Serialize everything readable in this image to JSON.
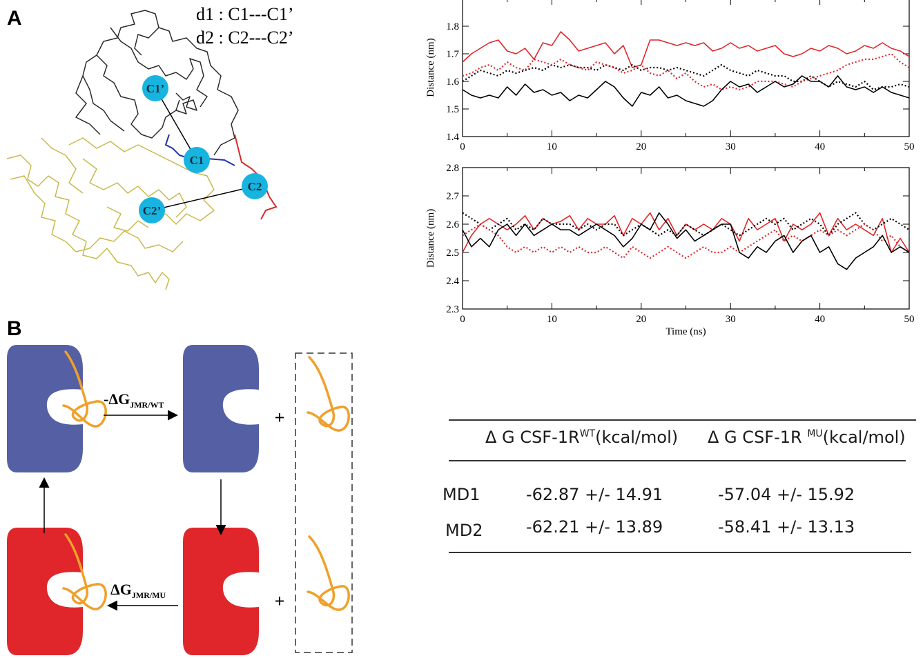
{
  "panel_a": {
    "letter": "A",
    "legend": [
      "d1 : C1---C1’",
      "d2 : C2---C2’"
    ],
    "markers": [
      "C1’",
      "C1",
      "C2",
      "C2’"
    ],
    "colors": {
      "marker": "#18b4e0",
      "receptor": "#2b2b2b",
      "jmr": "#c9b84a",
      "linker_red": "#d42a2a",
      "linker_blue": "#2233aa"
    }
  },
  "panel_b": {
    "letter": "B",
    "dg_wt": {
      "prefix": "-ΔG",
      "sub": "JMR/WT"
    },
    "dg_mu": {
      "prefix": "ΔG",
      "sub": "JMR/MU"
    },
    "plus": "+",
    "colors": {
      "wt": "#5560a4",
      "mu": "#e0262a",
      "peptide": "#f0a02a"
    }
  },
  "chart_data": [
    {
      "type": "line",
      "title": "",
      "xlabel": "",
      "ylabel": "Distance (nm)",
      "xlim": [
        0,
        50
      ],
      "ylim": [
        1.4,
        1.9
      ],
      "x_ticks": [
        "0",
        "10",
        "20",
        "30",
        "40",
        "50"
      ],
      "y_ticks": [
        "1.4",
        "1.5",
        "1.6",
        "1.7",
        "1.8"
      ],
      "x": [
        0,
        1,
        2,
        3,
        4,
        5,
        6,
        7,
        8,
        9,
        10,
        11,
        12,
        13,
        14,
        15,
        16,
        17,
        18,
        19,
        20,
        21,
        22,
        23,
        24,
        25,
        26,
        27,
        28,
        29,
        30,
        31,
        32,
        33,
        34,
        35,
        36,
        37,
        38,
        39,
        40,
        41,
        42,
        43,
        44,
        45,
        46,
        47,
        48,
        49,
        50
      ],
      "series": [
        {
          "color": "#e0262a",
          "style": "solid",
          "values": [
            1.67,
            1.7,
            1.72,
            1.74,
            1.75,
            1.71,
            1.7,
            1.72,
            1.68,
            1.74,
            1.73,
            1.78,
            1.75,
            1.71,
            1.72,
            1.73,
            1.74,
            1.7,
            1.73,
            1.65,
            1.66,
            1.75,
            1.75,
            1.74,
            1.73,
            1.74,
            1.73,
            1.74,
            1.71,
            1.72,
            1.74,
            1.72,
            1.73,
            1.71,
            1.72,
            1.73,
            1.7,
            1.69,
            1.7,
            1.72,
            1.71,
            1.73,
            1.72,
            1.7,
            1.71,
            1.73,
            1.72,
            1.74,
            1.72,
            1.71,
            1.69
          ]
        },
        {
          "color": "#000000",
          "style": "dotted",
          "values": [
            1.6,
            1.62,
            1.64,
            1.63,
            1.62,
            1.64,
            1.63,
            1.64,
            1.65,
            1.64,
            1.66,
            1.65,
            1.66,
            1.65,
            1.65,
            1.64,
            1.66,
            1.65,
            1.64,
            1.66,
            1.64,
            1.65,
            1.65,
            1.64,
            1.65,
            1.64,
            1.63,
            1.62,
            1.64,
            1.66,
            1.64,
            1.63,
            1.62,
            1.64,
            1.63,
            1.62,
            1.62,
            1.6,
            1.6,
            1.62,
            1.6,
            1.58,
            1.6,
            1.59,
            1.58,
            1.6,
            1.57,
            1.58,
            1.58,
            1.59,
            1.58
          ]
        },
        {
          "color": "#e0262a",
          "style": "dotted",
          "values": [
            1.62,
            1.63,
            1.65,
            1.66,
            1.64,
            1.67,
            1.65,
            1.64,
            1.68,
            1.67,
            1.66,
            1.68,
            1.66,
            1.65,
            1.64,
            1.67,
            1.66,
            1.65,
            1.63,
            1.64,
            1.66,
            1.63,
            1.62,
            1.64,
            1.61,
            1.63,
            1.6,
            1.58,
            1.59,
            1.57,
            1.58,
            1.57,
            1.58,
            1.6,
            1.6,
            1.6,
            1.59,
            1.58,
            1.6,
            1.61,
            1.62,
            1.63,
            1.64,
            1.66,
            1.67,
            1.68,
            1.68,
            1.69,
            1.7,
            1.67,
            1.65
          ]
        },
        {
          "color": "#000000",
          "style": "solid",
          "values": [
            1.57,
            1.55,
            1.54,
            1.55,
            1.54,
            1.58,
            1.55,
            1.59,
            1.56,
            1.57,
            1.55,
            1.56,
            1.53,
            1.55,
            1.54,
            1.57,
            1.6,
            1.58,
            1.54,
            1.51,
            1.56,
            1.55,
            1.58,
            1.54,
            1.55,
            1.53,
            1.52,
            1.51,
            1.53,
            1.57,
            1.6,
            1.58,
            1.59,
            1.56,
            1.58,
            1.6,
            1.58,
            1.59,
            1.62,
            1.6,
            1.6,
            1.58,
            1.62,
            1.58,
            1.57,
            1.58,
            1.56,
            1.58,
            1.56,
            1.55,
            1.54
          ]
        }
      ]
    },
    {
      "type": "line",
      "title": "",
      "xlabel": "Time (ns)",
      "ylabel": "Distance (nm)",
      "xlim": [
        0,
        50
      ],
      "ylim": [
        2.3,
        2.8
      ],
      "x_ticks": [
        "0",
        "10",
        "20",
        "30",
        "40",
        "50"
      ],
      "y_ticks": [
        "2.3",
        "2.4",
        "2.5",
        "2.6",
        "2.7",
        "2.8"
      ],
      "x": [
        0,
        1,
        2,
        3,
        4,
        5,
        6,
        7,
        8,
        9,
        10,
        11,
        12,
        13,
        14,
        15,
        16,
        17,
        18,
        19,
        20,
        21,
        22,
        23,
        24,
        25,
        26,
        27,
        28,
        29,
        30,
        31,
        32,
        33,
        34,
        35,
        36,
        37,
        38,
        39,
        40,
        41,
        42,
        43,
        44,
        45,
        46,
        47,
        48,
        49,
        50
      ],
      "series": [
        {
          "color": "#e0262a",
          "style": "solid",
          "values": [
            2.5,
            2.56,
            2.6,
            2.62,
            2.6,
            2.58,
            2.6,
            2.63,
            2.58,
            2.62,
            2.6,
            2.61,
            2.63,
            2.58,
            2.62,
            2.6,
            2.6,
            2.63,
            2.56,
            2.62,
            2.6,
            2.64,
            2.58,
            2.62,
            2.56,
            2.6,
            2.58,
            2.6,
            2.58,
            2.62,
            2.6,
            2.54,
            2.62,
            2.58,
            2.6,
            2.62,
            2.54,
            2.6,
            2.58,
            2.6,
            2.64,
            2.56,
            2.62,
            2.58,
            2.6,
            2.58,
            2.56,
            2.62,
            2.5,
            2.55,
            2.5
          ]
        },
        {
          "color": "#000000",
          "style": "dotted",
          "values": [
            2.64,
            2.62,
            2.6,
            2.58,
            2.6,
            2.62,
            2.58,
            2.6,
            2.58,
            2.62,
            2.6,
            2.6,
            2.6,
            2.58,
            2.6,
            2.58,
            2.6,
            2.6,
            2.56,
            2.58,
            2.6,
            2.58,
            2.56,
            2.58,
            2.56,
            2.6,
            2.58,
            2.56,
            2.58,
            2.6,
            2.58,
            2.56,
            2.58,
            2.6,
            2.62,
            2.6,
            2.62,
            2.58,
            2.6,
            2.62,
            2.6,
            2.56,
            2.6,
            2.62,
            2.64,
            2.6,
            2.58,
            2.6,
            2.62,
            2.6,
            2.58
          ]
        },
        {
          "color": "#e0262a",
          "style": "dotted",
          "values": [
            2.56,
            2.58,
            2.6,
            2.58,
            2.56,
            2.52,
            2.5,
            2.52,
            2.5,
            2.52,
            2.5,
            2.52,
            2.5,
            2.52,
            2.5,
            2.5,
            2.52,
            2.5,
            2.48,
            2.52,
            2.5,
            2.48,
            2.5,
            2.52,
            2.5,
            2.48,
            2.5,
            2.52,
            2.5,
            2.5,
            2.52,
            2.5,
            2.52,
            2.54,
            2.56,
            2.58,
            2.54,
            2.56,
            2.54,
            2.56,
            2.58,
            2.56,
            2.58,
            2.56,
            2.58,
            2.6,
            2.58,
            2.54,
            2.56,
            2.52,
            2.5
          ]
        },
        {
          "color": "#000000",
          "style": "solid",
          "values": [
            2.58,
            2.52,
            2.55,
            2.52,
            2.58,
            2.6,
            2.56,
            2.6,
            2.56,
            2.58,
            2.6,
            2.58,
            2.58,
            2.56,
            2.58,
            2.6,
            2.58,
            2.56,
            2.52,
            2.55,
            2.6,
            2.58,
            2.64,
            2.6,
            2.55,
            2.58,
            2.54,
            2.56,
            2.58,
            2.6,
            2.6,
            2.5,
            2.48,
            2.52,
            2.5,
            2.54,
            2.56,
            2.5,
            2.54,
            2.56,
            2.5,
            2.52,
            2.46,
            2.44,
            2.48,
            2.5,
            2.52,
            2.56,
            2.5,
            2.52,
            2.5
          ]
        }
      ]
    }
  ],
  "table": {
    "headers": [
      {
        "main": "Δ G CSF-1R",
        "sup": "WT",
        "unit": "(kcal/mol)"
      },
      {
        "main": "Δ G CSF-1R ",
        "sup": "MU",
        "unit": "(kcal/mol)"
      }
    ],
    "rows": [
      {
        "label": "MD1",
        "wt": "-62.87 +/- 14.91",
        "mu": "-57.04 +/- 15.92"
      },
      {
        "label": "MD2",
        "wt": "-62.21 +/- 13.89",
        "mu": "-58.41 +/- 13.13"
      }
    ]
  }
}
